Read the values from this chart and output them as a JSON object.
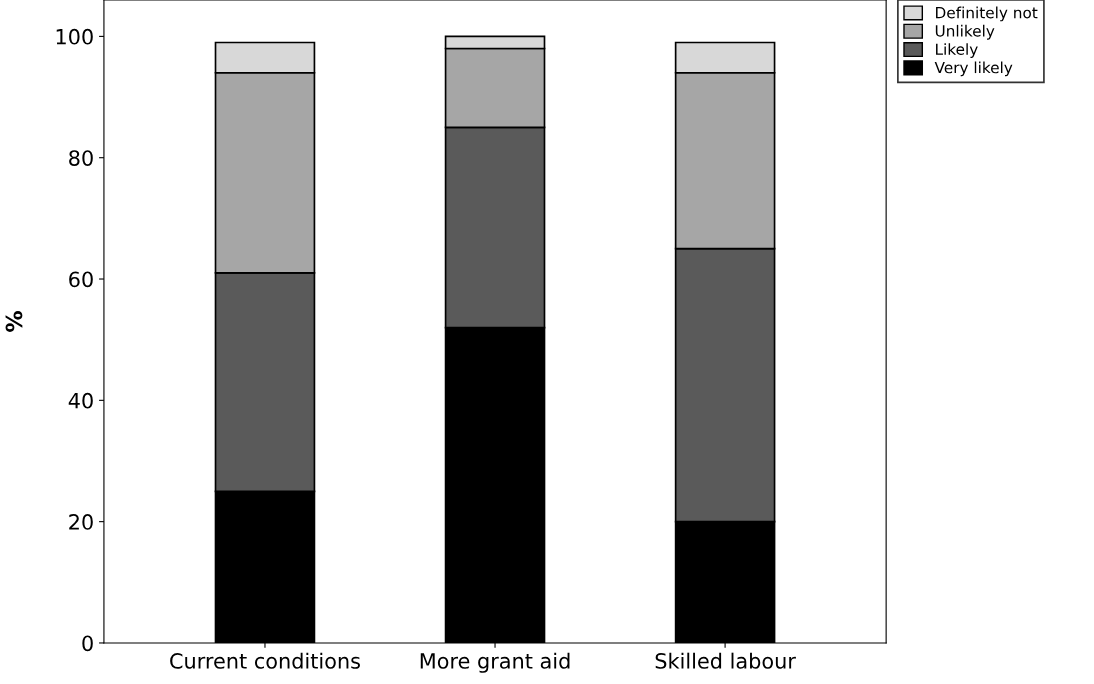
{
  "chart_data": {
    "type": "bar",
    "stacked": true,
    "ylabel": "%",
    "categories": [
      "Current conditions",
      "More grant aid",
      "Skilled labour"
    ],
    "series": [
      {
        "name": "Very likely",
        "color": "#000000",
        "values": [
          25,
          52,
          20
        ]
      },
      {
        "name": "Likely",
        "color": "#5a5a5a",
        "values": [
          36,
          33,
          45
        ]
      },
      {
        "name": "Unlikely",
        "color": "#a6a6a6",
        "values": [
          33,
          13,
          29
        ]
      },
      {
        "name": "Definitely not",
        "color": "#d8d8d8",
        "values": [
          5,
          2,
          5
        ]
      }
    ],
    "ylim": [
      0,
      106
    ],
    "yticks": [
      0,
      20,
      40,
      60,
      80,
      100
    ],
    "grid": false,
    "legend": "top right"
  }
}
